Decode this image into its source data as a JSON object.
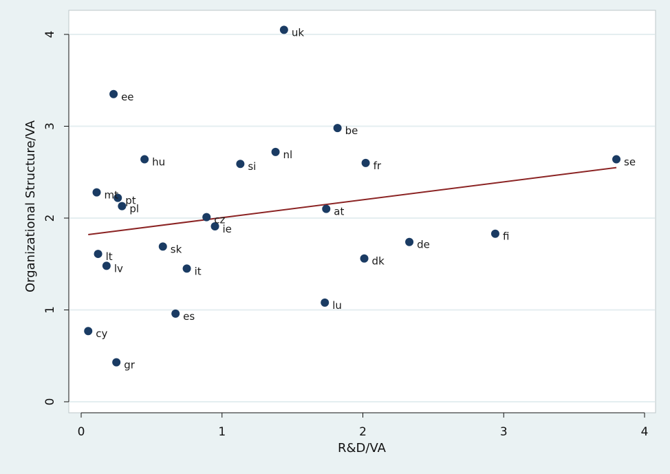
{
  "chart_data": {
    "type": "scatter",
    "title": "",
    "xlabel": "R&D/VA",
    "ylabel": "Organizational Structure/VA",
    "xlim": [
      0,
      4
    ],
    "ylim": [
      0,
      4
    ],
    "xticks": [
      0,
      1,
      2,
      3,
      4
    ],
    "yticks": [
      0,
      1,
      2,
      3,
      4
    ],
    "grid": "horizontal",
    "legend": "none",
    "colors": {
      "background": "#eaf2f3",
      "plot_background": "#ffffff",
      "marker": "#1a3b63",
      "fit_line": "#8b2323",
      "grid": "#e4eef0"
    },
    "points": [
      {
        "label": "uk",
        "x": 1.44,
        "y": 4.05
      },
      {
        "label": "ee",
        "x": 0.23,
        "y": 3.35
      },
      {
        "label": "be",
        "x": 1.82,
        "y": 2.98
      },
      {
        "label": "nl",
        "x": 1.38,
        "y": 2.72
      },
      {
        "label": "hu",
        "x": 0.45,
        "y": 2.64
      },
      {
        "label": "si",
        "x": 1.13,
        "y": 2.59
      },
      {
        "label": "fr",
        "x": 2.02,
        "y": 2.6
      },
      {
        "label": "se",
        "x": 3.8,
        "y": 2.64
      },
      {
        "label": "mt",
        "x": 0.11,
        "y": 2.28
      },
      {
        "label": "pt",
        "x": 0.26,
        "y": 2.22
      },
      {
        "label": "pl",
        "x": 0.29,
        "y": 2.13
      },
      {
        "label": "at",
        "x": 1.74,
        "y": 2.1
      },
      {
        "label": "cz",
        "x": 0.89,
        "y": 2.01
      },
      {
        "label": "ie",
        "x": 0.95,
        "y": 1.91
      },
      {
        "label": "fi",
        "x": 2.94,
        "y": 1.83
      },
      {
        "label": "de",
        "x": 2.33,
        "y": 1.74
      },
      {
        "label": "sk",
        "x": 0.58,
        "y": 1.69
      },
      {
        "label": "lt",
        "x": 0.12,
        "y": 1.61
      },
      {
        "label": "dk",
        "x": 2.01,
        "y": 1.56
      },
      {
        "label": "lv",
        "x": 0.18,
        "y": 1.48
      },
      {
        "label": "it",
        "x": 0.75,
        "y": 1.45
      },
      {
        "label": "lu",
        "x": 1.73,
        "y": 1.08
      },
      {
        "label": "es",
        "x": 0.67,
        "y": 0.96
      },
      {
        "label": "cy",
        "x": 0.05,
        "y": 0.77
      },
      {
        "label": "gr",
        "x": 0.25,
        "y": 0.43
      }
    ],
    "fit_line": {
      "x": [
        0.05,
        3.8
      ],
      "y": [
        1.82,
        2.55
      ]
    }
  }
}
